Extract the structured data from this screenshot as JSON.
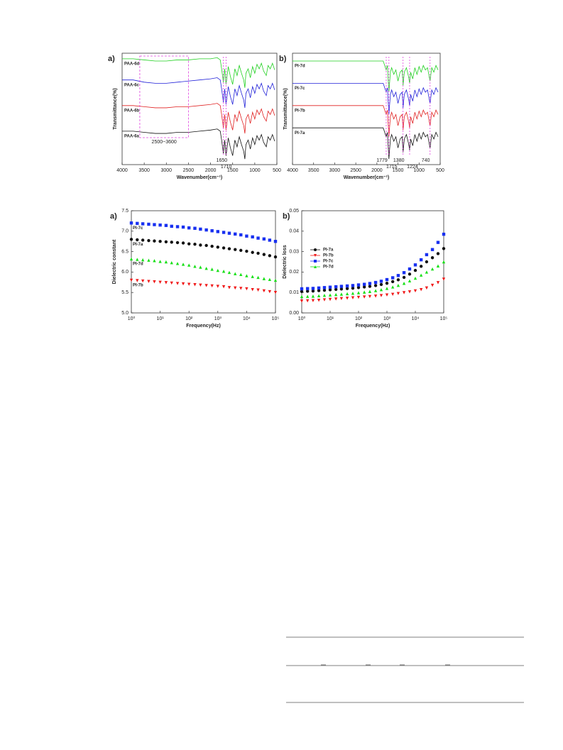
{
  "chart_data": [
    {
      "type": "line",
      "panel": "a)",
      "xlabel": "Wavenumber(cm⁻¹)",
      "ylabel": "Transmittance(%)",
      "xlim": [
        4000,
        500
      ],
      "xticks": [
        4000,
        3500,
        3000,
        2500,
        2000,
        1500,
        1000,
        500
      ],
      "ylim": [
        0,
        100
      ],
      "x": [
        4000,
        3750,
        3500,
        3250,
        3000,
        2750,
        2500,
        2250,
        2000,
        1850,
        1780,
        1750,
        1710,
        1680,
        1650,
        1600,
        1550,
        1500,
        1450,
        1400,
        1380,
        1350,
        1300,
        1250,
        1224,
        1200,
        1150,
        1100,
        1050,
        1000,
        950,
        900,
        850,
        800,
        740,
        700,
        650,
        600,
        550
      ],
      "series": [
        {
          "name": "PAA-6a",
          "color": "#111111",
          "values": [
            30,
            30,
            29,
            28,
            28,
            29,
            29,
            30,
            31,
            32,
            30,
            22,
            10,
            22,
            8,
            24,
            15,
            8,
            22,
            16,
            20,
            25,
            18,
            12,
            5,
            18,
            22,
            14,
            24,
            18,
            26,
            22,
            27,
            20,
            16,
            25,
            22,
            27,
            21
          ]
        },
        {
          "name": "PAA-6b",
          "color": "#e02020",
          "values": [
            53,
            53,
            52,
            51,
            51,
            52,
            52,
            53,
            54,
            55,
            53,
            45,
            33,
            45,
            31,
            47,
            38,
            31,
            45,
            39,
            43,
            48,
            41,
            35,
            28,
            41,
            45,
            37,
            47,
            41,
            49,
            45,
            50,
            43,
            39,
            48,
            45,
            50,
            44
          ]
        },
        {
          "name": "PAA-6c",
          "color": "#2020d8",
          "values": [
            76,
            76,
            74,
            73,
            73,
            74,
            75,
            76,
            77,
            78,
            76,
            68,
            56,
            68,
            54,
            70,
            61,
            54,
            68,
            62,
            66,
            71,
            64,
            58,
            51,
            64,
            68,
            60,
            70,
            64,
            72,
            68,
            73,
            66,
            62,
            71,
            68,
            73,
            67
          ]
        },
        {
          "name": "PAA-6d",
          "color": "#20d020",
          "values": [
            95,
            95,
            94,
            93,
            93,
            94,
            94,
            95,
            95,
            96,
            94,
            86,
            74,
            86,
            72,
            88,
            79,
            72,
            86,
            80,
            84,
            89,
            82,
            76,
            69,
            82,
            86,
            78,
            88,
            82,
            90,
            86,
            91,
            84,
            80,
            89,
            86,
            91,
            85
          ]
        }
      ],
      "annotations": [
        {
          "label": "2500~3600",
          "x_range": [
            3600,
            2500
          ]
        },
        {
          "label": "1710",
          "x": 1710
        },
        {
          "label": "1650",
          "x": 1650
        }
      ]
    },
    {
      "type": "line",
      "panel": "b)",
      "xlabel": "Wavenumber(cm⁻¹)",
      "ylabel": "Transmittance(%)",
      "xlim": [
        4000,
        500
      ],
      "xticks": [
        4000,
        3500,
        3000,
        2500,
        2000,
        1500,
        1000,
        500
      ],
      "ylim": [
        0,
        100
      ],
      "x": [
        4000,
        3750,
        3500,
        3250,
        3000,
        2750,
        2500,
        2250,
        2000,
        1850,
        1780,
        1750,
        1715,
        1680,
        1650,
        1600,
        1550,
        1500,
        1450,
        1400,
        1380,
        1350,
        1300,
        1250,
        1224,
        1200,
        1150,
        1100,
        1050,
        1000,
        950,
        900,
        850,
        800,
        740,
        700,
        650,
        600,
        550
      ],
      "series": [
        {
          "name": "PI-7a",
          "color": "#111111",
          "values": [
            33,
            33,
            33,
            33,
            33,
            33,
            33,
            33,
            33,
            33,
            25,
            29,
            5,
            23,
            27,
            21,
            25,
            15,
            23,
            25,
            11,
            23,
            27,
            19,
            13,
            23,
            17,
            27,
            21,
            28,
            23,
            29,
            25,
            27,
            15,
            27,
            23,
            29,
            25
          ]
        },
        {
          "name": "PI-7b",
          "color": "#e02020",
          "values": [
            53,
            53,
            53,
            53,
            53,
            53,
            53,
            53,
            53,
            53,
            45,
            49,
            25,
            43,
            47,
            41,
            45,
            35,
            43,
            45,
            31,
            43,
            47,
            39,
            33,
            43,
            37,
            47,
            41,
            48,
            43,
            49,
            45,
            47,
            35,
            47,
            43,
            49,
            45
          ]
        },
        {
          "name": "PI-7c",
          "color": "#2020d8",
          "values": [
            73,
            73,
            73,
            73,
            73,
            73,
            73,
            73,
            73,
            73,
            65,
            69,
            45,
            63,
            67,
            61,
            65,
            55,
            63,
            65,
            51,
            63,
            67,
            59,
            53,
            63,
            57,
            67,
            61,
            68,
            63,
            69,
            65,
            67,
            55,
            67,
            63,
            69,
            65
          ]
        },
        {
          "name": "PI-7d",
          "color": "#20d020",
          "values": [
            93,
            93,
            93,
            93,
            93,
            93,
            93,
            93,
            93,
            93,
            85,
            89,
            65,
            83,
            87,
            81,
            85,
            75,
            83,
            85,
            71,
            83,
            87,
            79,
            73,
            83,
            77,
            87,
            81,
            88,
            83,
            89,
            85,
            87,
            75,
            87,
            83,
            89,
            85
          ]
        }
      ],
      "annotations": [
        {
          "label": "1779",
          "x": 1779
        },
        {
          "label": "1715",
          "x": 1715
        },
        {
          "label": "1380",
          "x": 1380
        },
        {
          "label": "1224",
          "x": 1224
        },
        {
          "label": "740",
          "x": 740
        }
      ]
    },
    {
      "type": "scatter",
      "panel": "a)",
      "xlabel": "Frequency(Hz)",
      "ylabel": "Dielectric constant",
      "log_x": true,
      "xlim": [
        1,
        100000
      ],
      "xticks": [
        {
          "value": 1,
          "label": "10⁰"
        },
        {
          "value": 10,
          "label": "10¹"
        },
        {
          "value": 100,
          "label": "10²"
        },
        {
          "value": 1000,
          "label": "10³"
        },
        {
          "value": 10000,
          "label": "10⁴"
        },
        {
          "value": 100000,
          "label": "10⁵"
        }
      ],
      "ylim": [
        5,
        7.5
      ],
      "yticks": [
        {
          "value": 5,
          "label": "5.0"
        },
        5.5,
        {
          "value": 6,
          "label": "6.0"
        },
        6.5,
        {
          "value": 7,
          "label": "7.0"
        },
        7.5
      ],
      "x": [
        1,
        1.6,
        2.5,
        4,
        6.3,
        10,
        16,
        25,
        40,
        63,
        100,
        160,
        250,
        400,
        630,
        1000,
        1600,
        2500,
        4000,
        6300,
        10000,
        16000,
        25000,
        40000,
        63000,
        100000
      ],
      "series": [
        {
          "name": "PI-7a",
          "color": "#111111",
          "marker": "circle",
          "values": [
            6.8,
            6.79,
            6.78,
            6.77,
            6.76,
            6.75,
            6.74,
            6.73,
            6.72,
            6.71,
            6.69,
            6.68,
            6.66,
            6.65,
            6.63,
            6.61,
            6.59,
            6.57,
            6.55,
            6.53,
            6.51,
            6.48,
            6.46,
            6.43,
            6.4,
            6.37
          ]
        },
        {
          "name": "PI-7b",
          "color": "#f01818",
          "marker": "down",
          "values": [
            5.8,
            5.79,
            5.78,
            5.77,
            5.76,
            5.75,
            5.74,
            5.73,
            5.72,
            5.71,
            5.7,
            5.69,
            5.68,
            5.67,
            5.66,
            5.65,
            5.64,
            5.62,
            5.61,
            5.6,
            5.59,
            5.57,
            5.56,
            5.54,
            5.52,
            5.5
          ]
        },
        {
          "name": "PI-7c",
          "color": "#1830f0",
          "marker": "square",
          "values": [
            7.2,
            7.19,
            7.18,
            7.17,
            7.16,
            7.15,
            7.14,
            7.12,
            7.11,
            7.1,
            7.08,
            7.07,
            7.05,
            7.03,
            7.01,
            6.99,
            6.97,
            6.95,
            6.93,
            6.91,
            6.88,
            6.86,
            6.83,
            6.81,
            6.78,
            6.75
          ]
        },
        {
          "name": "PI-7d",
          "color": "#18e018",
          "marker": "up",
          "values": [
            6.32,
            6.31,
            6.3,
            6.29,
            6.28,
            6.26,
            6.25,
            6.23,
            6.21,
            6.19,
            6.17,
            6.14,
            6.12,
            6.09,
            6.07,
            6.04,
            6.02,
            5.99,
            5.96,
            5.94,
            5.91,
            5.89,
            5.87,
            5.84,
            5.82,
            5.8
          ]
        }
      ]
    },
    {
      "type": "scatter",
      "panel": "b)",
      "xlabel": "Frequency(Hz)",
      "ylabel": "Dielectric loss",
      "log_x": true,
      "legend": "left",
      "xlim": [
        1,
        100000
      ],
      "xticks": [
        {
          "value": 1,
          "label": "10⁰"
        },
        {
          "value": 10,
          "label": "10¹"
        },
        {
          "value": 100,
          "label": "10²"
        },
        {
          "value": 1000,
          "label": "10³"
        },
        {
          "value": 10000,
          "label": "10⁴"
        },
        {
          "value": 100000,
          "label": "10⁵"
        }
      ],
      "ylim": [
        0,
        0.05
      ],
      "yticks": [
        {
          "value": 0,
          "label": "0.00"
        },
        {
          "value": 0.01,
          "label": "0.01"
        },
        {
          "value": 0.02,
          "label": "0.02"
        },
        {
          "value": 0.03,
          "label": "0.03"
        },
        {
          "value": 0.04,
          "label": "0.04"
        },
        {
          "value": 0.05,
          "label": "0.05"
        }
      ],
      "x": [
        1,
        1.6,
        2.5,
        4,
        6.3,
        10,
        16,
        25,
        40,
        63,
        100,
        160,
        250,
        400,
        630,
        1000,
        1600,
        2500,
        4000,
        6300,
        10000,
        16000,
        25000,
        40000,
        63000,
        100000
      ],
      "series": [
        {
          "name": "PI-7a",
          "color": "#111111",
          "marker": "circle",
          "values": [
            0.0105,
            0.0106,
            0.0107,
            0.0109,
            0.0111,
            0.0113,
            0.0115,
            0.0117,
            0.0119,
            0.0121,
            0.0124,
            0.0127,
            0.013,
            0.0134,
            0.0139,
            0.0145,
            0.0153,
            0.0162,
            0.0174,
            0.019,
            0.0208,
            0.0228,
            0.025,
            0.027,
            0.029,
            0.0315
          ]
        },
        {
          "name": "PI-7b",
          "color": "#f01818",
          "marker": "down",
          "values": [
            0.0058,
            0.0059,
            0.006,
            0.0062,
            0.0064,
            0.0066,
            0.0068,
            0.007,
            0.0072,
            0.0074,
            0.0076,
            0.0078,
            0.008,
            0.0082,
            0.0085,
            0.0088,
            0.0091,
            0.0095,
            0.0099,
            0.0103,
            0.0108,
            0.0114,
            0.0122,
            0.0135,
            0.0148,
            0.0165
          ]
        },
        {
          "name": "PI-7c",
          "color": "#1830f0",
          "marker": "square",
          "values": [
            0.0118,
            0.0119,
            0.012,
            0.0122,
            0.0124,
            0.0126,
            0.0128,
            0.013,
            0.0132,
            0.0134,
            0.0137,
            0.014,
            0.0144,
            0.0149,
            0.0155,
            0.0163,
            0.0172,
            0.0183,
            0.0197,
            0.0215,
            0.0235,
            0.026,
            0.0285,
            0.031,
            0.0345,
            0.0385
          ]
        },
        {
          "name": "PI-7d",
          "color": "#18e018",
          "marker": "up",
          "values": [
            0.008,
            0.0081,
            0.0082,
            0.0084,
            0.0086,
            0.0088,
            0.009,
            0.0092,
            0.0094,
            0.0096,
            0.0099,
            0.0102,
            0.0105,
            0.0109,
            0.0114,
            0.012,
            0.0127,
            0.0135,
            0.0145,
            0.0157,
            0.017,
            0.0185,
            0.02,
            0.0215,
            0.023,
            0.025
          ]
        }
      ]
    }
  ]
}
